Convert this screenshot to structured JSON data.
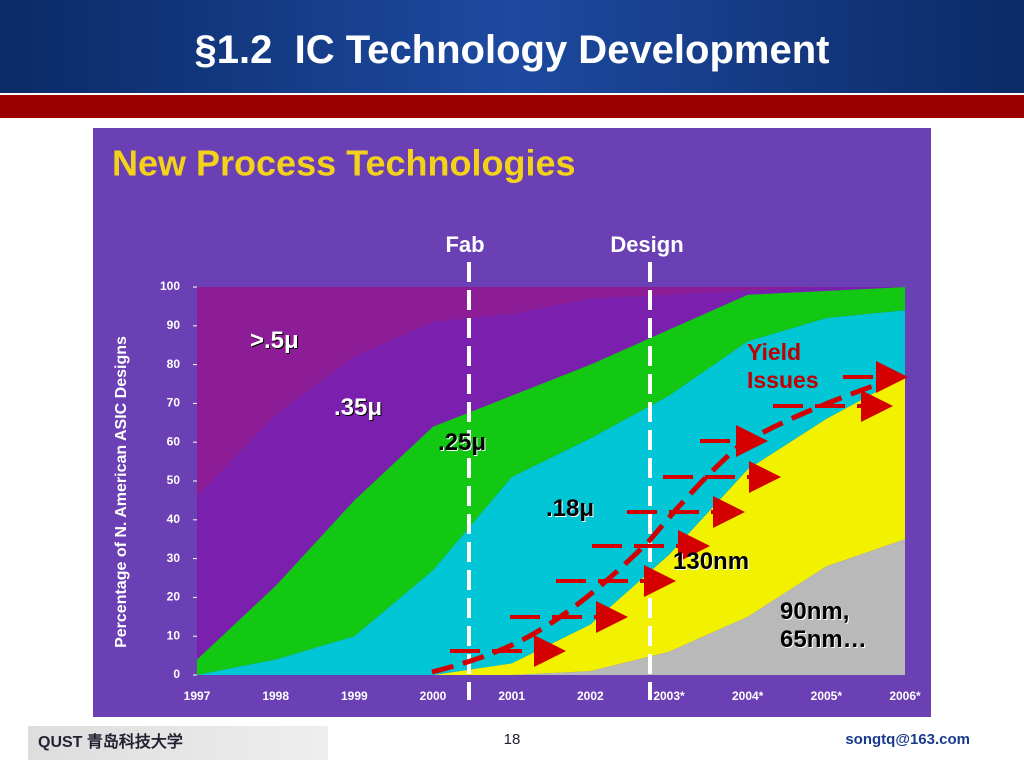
{
  "header": {
    "title": "§1.2  IC Technology Development"
  },
  "footer": {
    "page": "18",
    "email": "songtq@163.com",
    "logo": "QUST 青岛科技大学"
  },
  "chart_data": {
    "type": "stacked_area",
    "title": "New Process Technologies",
    "y_label": "Percentage of N. American ASIC Designs",
    "categories": [
      "1997",
      "1998",
      "1999",
      "2000",
      "2001",
      "2002",
      "2003*",
      "2004*",
      "2005*",
      "2006*"
    ],
    "series": [
      {
        "name": "90nm, 65nm…",
        "color": "#b9b9b9",
        "values": [
          0,
          0,
          0,
          0,
          0,
          1,
          6,
          15,
          28,
          35
        ]
      },
      {
        "name": "130nm",
        "color": "#f2f200",
        "values": [
          0,
          0,
          0,
          0,
          3,
          12,
          25,
          38,
          38,
          42
        ]
      },
      {
        "name": ".18μ",
        "color": "#00c6d6",
        "values": [
          0,
          4,
          10,
          27,
          48,
          48,
          41,
          33,
          26,
          17
        ]
      },
      {
        "name": ".25μ",
        "color": "#12c812",
        "values": [
          4,
          19,
          35,
          37,
          21,
          19,
          17,
          12,
          7,
          6
        ]
      },
      {
        "name": ".35μ",
        "color": "#7a1fae",
        "values": [
          42,
          44,
          37,
          27,
          21,
          17,
          9,
          1,
          1,
          0
        ]
      },
      {
        "name": ">.5μ",
        "color": "#8d1d96",
        "values": [
          54,
          33,
          18,
          9,
          7,
          3,
          2,
          1,
          0,
          0
        ]
      }
    ],
    "annotations": [
      "Fab",
      "Design",
      "Yield Issues"
    ],
    "ylim": [
      0,
      100
    ],
    "yticks": [
      0,
      10,
      20,
      30,
      40,
      50,
      60,
      70,
      80,
      90,
      100
    ]
  }
}
